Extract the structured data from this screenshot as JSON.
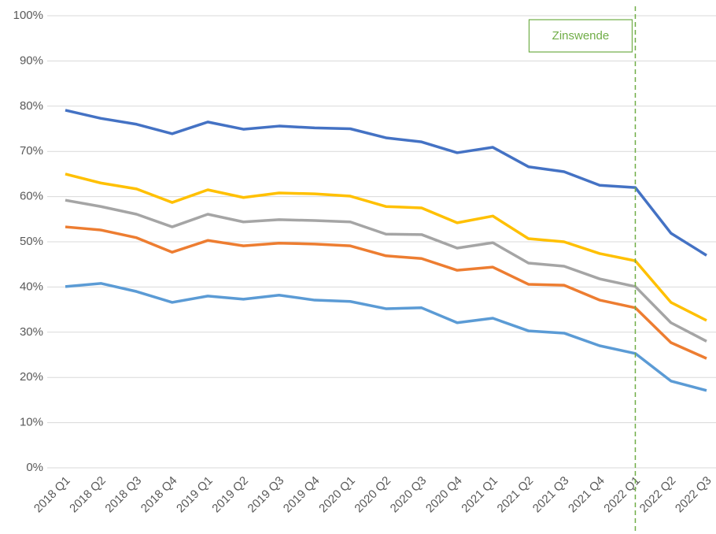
{
  "chart_data": {
    "type": "line",
    "categories": [
      "2018 Q1",
      "2018 Q2",
      "2018 Q3",
      "2018 Q4",
      "2019 Q1",
      "2019 Q2",
      "2019 Q3",
      "2019 Q4",
      "2020 Q1",
      "2020 Q2",
      "2020 Q3",
      "2020 Q4",
      "2021 Q1",
      "2021 Q2",
      "2021 Q3",
      "2021 Q4",
      "2022 Q1",
      "2022 Q2",
      "2022 Q3"
    ],
    "series": [
      {
        "color": "#4472c4",
        "values": [
          79.1,
          77.3,
          76,
          73.9,
          76.5,
          74.9,
          75.6,
          75.2,
          75,
          73,
          72.1,
          69.7,
          70.9,
          66.6,
          65.5,
          62.5,
          62,
          51.9,
          47
        ]
      },
      {
        "color": "#ffc000",
        "values": [
          65,
          63,
          61.7,
          58.7,
          61.5,
          59.8,
          60.8,
          60.6,
          60.1,
          57.8,
          57.5,
          54.2,
          55.7,
          50.7,
          50,
          47.4,
          45.8,
          36.6,
          32.6
        ]
      },
      {
        "color": "#a5a5a5",
        "values": [
          59.2,
          57.8,
          56.1,
          53.3,
          56.1,
          54.4,
          54.9,
          54.7,
          54.4,
          51.7,
          51.6,
          48.6,
          49.8,
          45.3,
          44.6,
          41.8,
          40.1,
          32.1,
          28
        ]
      },
      {
        "color": "#ed7d31",
        "values": [
          53.3,
          52.6,
          50.9,
          47.7,
          50.3,
          49.1,
          49.7,
          49.5,
          49.1,
          46.9,
          46.3,
          43.7,
          44.4,
          40.6,
          40.4,
          37.1,
          35.4,
          27.7,
          24.2
        ]
      },
      {
        "color": "#5b9bd5",
        "values": [
          40.1,
          40.8,
          39,
          36.6,
          38,
          37.3,
          38.2,
          37.1,
          36.8,
          35.2,
          35.4,
          32.1,
          33.1,
          30.3,
          29.8,
          27,
          25.3,
          19.2,
          17.1
        ]
      }
    ],
    "ylim": [
      0,
      100
    ],
    "yticks": [
      {
        "value": 0,
        "label": "0%"
      },
      {
        "value": 10,
        "label": "10%"
      },
      {
        "value": 20,
        "label": "20%"
      },
      {
        "value": 30,
        "label": "30%"
      },
      {
        "value": 40,
        "label": "40%"
      },
      {
        "value": 50,
        "label": "50%"
      },
      {
        "value": 60,
        "label": "60%"
      },
      {
        "value": 70,
        "label": "70%"
      },
      {
        "value": 80,
        "label": "80%"
      },
      {
        "value": 90,
        "label": "90%"
      },
      {
        "value": 100,
        "label": "100%"
      }
    ],
    "grid": true,
    "annotation": {
      "text": "Zinswende",
      "x": "2022 Q1",
      "color": "#70ad47"
    }
  }
}
